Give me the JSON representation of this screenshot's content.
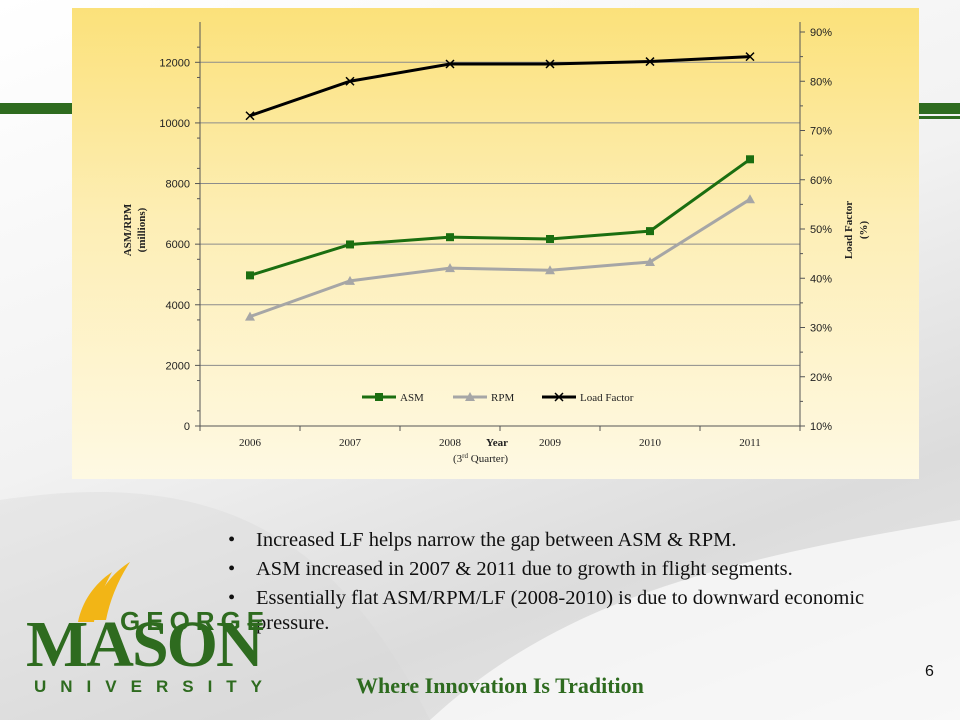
{
  "colors": {
    "asm": "#1b6e10",
    "rpm": "#a6a6a6",
    "load_factor": "#000000",
    "brand_green": "#2e6b1f",
    "gold": "#f2b516",
    "gridline": "#8c8c8c"
  },
  "chart_data": {
    "type": "line",
    "categories": [
      "2006",
      "2007",
      "2008",
      "2009",
      "2010",
      "2011"
    ],
    "series": [
      {
        "name": "ASM",
        "axis": "left",
        "marker": "square",
        "values": [
          4970,
          5990,
          6230,
          6170,
          6430,
          8800
        ]
      },
      {
        "name": "RPM",
        "axis": "left",
        "marker": "triangle",
        "values": [
          3610,
          4790,
          5210,
          5140,
          5410,
          7480
        ]
      },
      {
        "name": "Load Factor",
        "axis": "right",
        "marker": "x",
        "values": [
          73,
          80,
          83.5,
          83.5,
          84,
          85
        ]
      }
    ],
    "ylabel": "ASM/RPM (millions)",
    "ylabel_line1": "ASM/RPM",
    "ylabel_line2": "(millions)",
    "y2label_line1": "Load Factor",
    "y2label_line2": "(%)",
    "xlabel_line1": "Year",
    "xlabel_line2_pre": "(3",
    "xlabel_line2_sup": "rd",
    "xlabel_line2_post": " Quarter)",
    "ylim": [
      0,
      13000
    ],
    "yticks": [
      "0",
      "2000",
      "4000",
      "6000",
      "8000",
      "10000",
      "12000"
    ],
    "y2lim": [
      10,
      90
    ],
    "y2ticks": [
      "10%",
      "20%",
      "30%",
      "40%",
      "50%",
      "60%",
      "70%",
      "80%",
      "90%"
    ],
    "grid": true,
    "legend_position": "bottom"
  },
  "bullets": [
    "Increased LF helps narrow the gap between ASM & RPM.",
    "ASM increased in 2007 & 2011 due to growth in flight segments.",
    "Essentially flat ASM/RPM/LF (2008-2010) is due to downward economic pressure."
  ],
  "bullet_glyph": "•",
  "logo": {
    "george": "GEORGE",
    "mason": "MASON",
    "university": "UNIVERSITY"
  },
  "tagline": "Where Innovation Is Tradition",
  "page_number": "6"
}
